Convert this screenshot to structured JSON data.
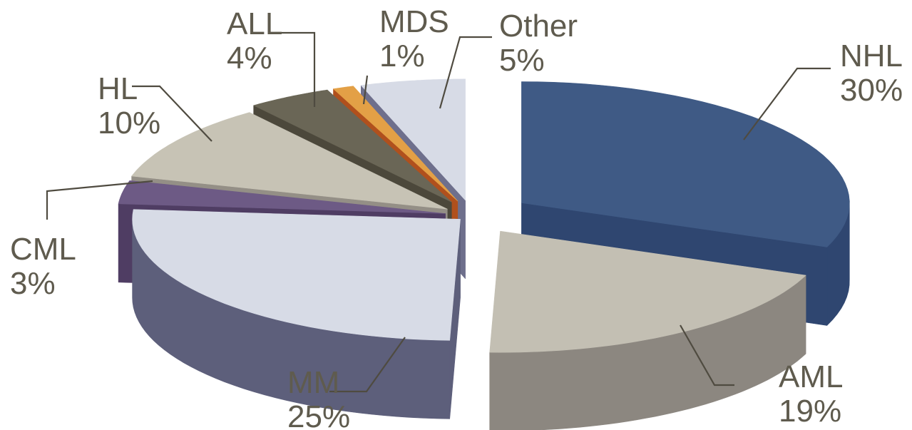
{
  "chart_data": {
    "type": "pie",
    "style": "3d-exploded",
    "title": "",
    "legend": "none",
    "slices": [
      {
        "label": "NHL",
        "value": 30,
        "display": "30%",
        "top_color": "#3f5a85",
        "side_color": "#2f4670"
      },
      {
        "label": "AML",
        "value": 19,
        "display": "19%",
        "top_color": "#c3bfb3",
        "side_color": "#8c8780"
      },
      {
        "label": "MM",
        "value": 25,
        "display": "25%",
        "top_color": "#d7dbe6",
        "side_color": "#5d5f7b"
      },
      {
        "label": "CML",
        "value": 3,
        "display": "3%",
        "top_color": "#6d5a85",
        "side_color": "#4f3d63"
      },
      {
        "label": "HL",
        "value": 10,
        "display": "10%",
        "top_color": "#c7c3b5",
        "side_color": "#948f86"
      },
      {
        "label": "ALL",
        "value": 4,
        "display": "4%",
        "top_color": "#6a6656",
        "side_color": "#4c483b"
      },
      {
        "label": "MDS",
        "value": 1,
        "display": "1%",
        "top_color": "#e3a046",
        "side_color": "#b0501d"
      },
      {
        "label": "Other",
        "value": 5,
        "display": "5%",
        "top_color": "#d7dbe6",
        "side_color": "#6e6f8c"
      }
    ]
  }
}
